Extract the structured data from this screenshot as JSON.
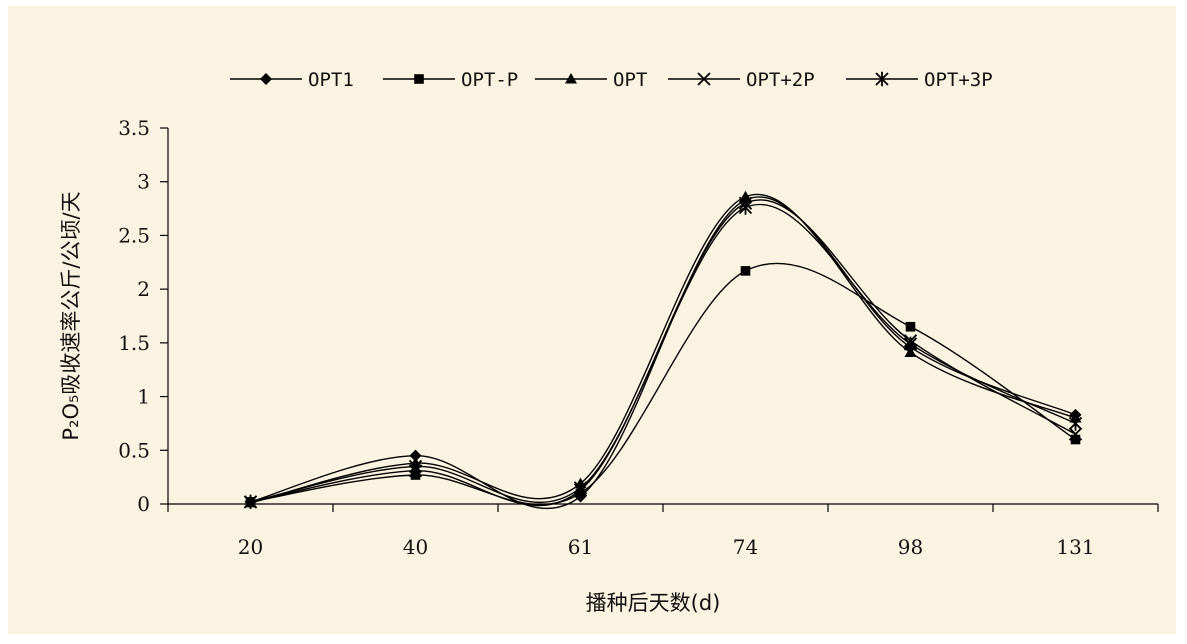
{
  "chart_data": {
    "type": "line",
    "title": "",
    "xlabel": "播种后天数(d)",
    "ylabel": "P₂O₅吸收速率公斤/公顷/天",
    "categories": [
      "20",
      "40",
      "61",
      "74",
      "98",
      "131"
    ],
    "ylim": [
      0,
      3.5
    ],
    "yticks": [
      "0",
      "0.5",
      "1",
      "1.5",
      "2",
      "2.5",
      "3",
      "3.5"
    ],
    "grid": false,
    "legend_position": "top",
    "series": [
      {
        "name": "OPT1",
        "marker": "diamond",
        "values": [
          0.02,
          0.45,
          0.07,
          2.83,
          1.46,
          0.83
        ]
      },
      {
        "name": "OPT-P",
        "marker": "square",
        "values": [
          0.02,
          0.27,
          0.1,
          2.17,
          1.65,
          0.6
        ]
      },
      {
        "name": "OPT",
        "marker": "triangle",
        "values": [
          0.01,
          0.38,
          0.19,
          2.86,
          1.41,
          0.8
        ]
      },
      {
        "name": "OPT+2P",
        "marker": "x",
        "values": [
          0.02,
          0.31,
          0.13,
          2.8,
          1.52,
          0.65
        ]
      },
      {
        "name": "OPT+3P",
        "marker": "asterisk",
        "values": [
          0.02,
          0.35,
          0.15,
          2.76,
          1.49,
          0.75
        ]
      }
    ],
    "colors": {
      "background": "#fbf3e1",
      "line": "#000000"
    }
  }
}
